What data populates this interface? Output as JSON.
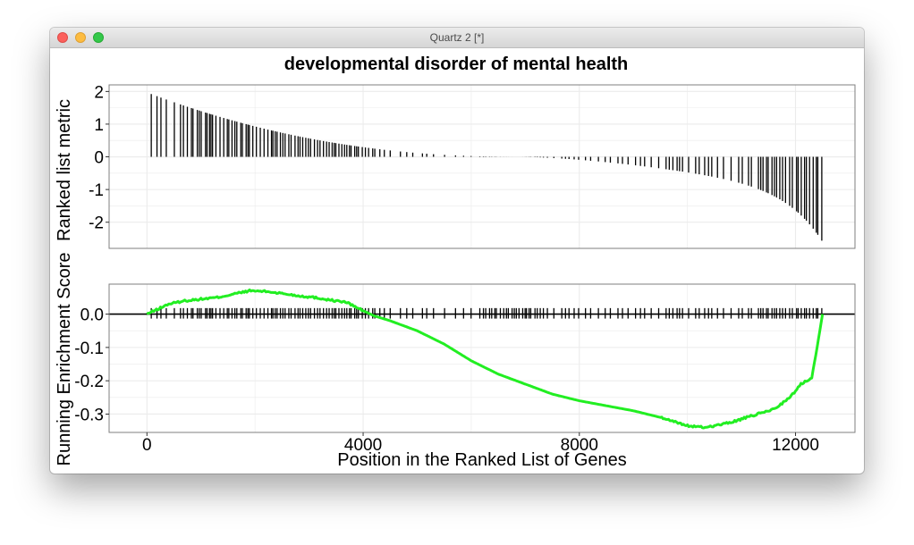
{
  "window": {
    "title": "Quartz 2 [*]"
  },
  "colors": {
    "curve": "#22ee22",
    "bars": "#000000",
    "grid": "#ebebeb",
    "panel_border": "#7f7f7f"
  },
  "chart_data": {
    "type": "line",
    "title": "developmental disorder of mental health",
    "xlabel": "Position in the Ranked List of Genes",
    "xlim": [
      -700,
      13100
    ],
    "x_ticks": [
      0,
      4000,
      8000,
      12000
    ],
    "x_tick_labels": [
      "0",
      "4000",
      "8000",
      "12000"
    ],
    "n_genes": 12500,
    "panels": [
      {
        "name": "ranked-list",
        "ylabel": "Ranked list metric",
        "ylim": [
          -2.8,
          2.2
        ],
        "y_ticks": [
          2,
          1,
          0,
          -1,
          -2
        ],
        "y_tick_labels": [
          "2",
          "1",
          "0",
          "-1",
          "-2"
        ],
        "metric_shape": {
          "max": 1.95,
          "min": -2.6
        }
      },
      {
        "name": "running-enrichment",
        "ylabel": "Running Enrichment Score",
        "ylim": [
          -0.355,
          0.09
        ],
        "y_ticks": [
          0.0,
          -0.1,
          -0.2,
          -0.3
        ],
        "y_tick_labels": [
          "0.0",
          "-0.1",
          "-0.2",
          "-0.3"
        ],
        "hit_mark_top": 0.018,
        "series": [
          {
            "x": [
              0,
              200,
              400,
              700,
              1000,
              1300,
              1600,
              1900,
              2200,
              2500,
              2800,
              3100,
              3400,
              3700,
              4000,
              4200,
              4500,
              5000,
              5500,
              6000,
              6500,
              7000,
              7500,
              8000,
              8500,
              9000,
              9500,
              10000,
              10300,
              10500,
              10800,
              11000,
              11300,
              11600,
              11900,
              12100,
              12300,
              12400,
              12500
            ],
            "y": [
              0.0,
              0.015,
              0.03,
              0.04,
              0.045,
              0.05,
              0.06,
              0.07,
              0.068,
              0.062,
              0.055,
              0.05,
              0.042,
              0.035,
              0.01,
              -0.005,
              -0.02,
              -0.05,
              -0.09,
              -0.14,
              -0.18,
              -0.21,
              -0.24,
              -0.26,
              -0.275,
              -0.29,
              -0.31,
              -0.335,
              -0.34,
              -0.335,
              -0.325,
              -0.315,
              -0.3,
              -0.285,
              -0.25,
              -0.21,
              -0.19,
              -0.1,
              0.0
            ]
          }
        ]
      }
    ]
  }
}
